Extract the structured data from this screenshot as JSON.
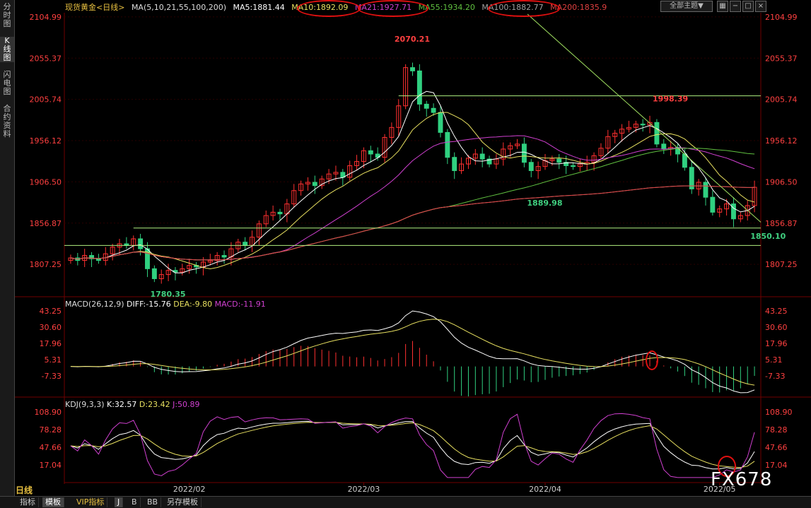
{
  "sidebar": {
    "tabs": [
      "分时图",
      "K线图",
      "闪电图",
      "合约资料"
    ],
    "active": 1
  },
  "header": {
    "title": "现货黄金<日线>",
    "ma_label": "MA(5,10,21,55,100,200)",
    "ma_values": [
      {
        "label": "MA5:1881.44",
        "color": "#ffffff"
      },
      {
        "label": "MA10:1892.09",
        "color": "#e8e060"
      },
      {
        "label": "MA21:1927.71",
        "color": "#d040d0"
      },
      {
        "label": "MA55:1934.20",
        "color": "#60c040"
      },
      {
        "label": "MA100:1882.77",
        "color": "#a0a0a0"
      },
      {
        "label": "MA200:1835.9",
        "color": "#e04040"
      }
    ],
    "theme_button": "全部主题▼"
  },
  "macd_legend": {
    "title": "MACD(26,12,9)",
    "diff": "DIFF:-15.76",
    "dea": "DEA:-9.80",
    "macd": "MACD:-11.91"
  },
  "kdj_legend": {
    "title": "KDJ(9,3,3)",
    "k": "K:32.57",
    "d": "D:23.42",
    "j": "J:50.89"
  },
  "day_label": "日线",
  "bottom_tabs": [
    "指标",
    "模板",
    "VIP指标",
    "J",
    "B",
    "BB",
    "另存模板"
  ],
  "watermark": "FX678",
  "colors": {
    "up": "#ff3030",
    "down": "#30d080",
    "grid": "#700000",
    "axis_text": "#ff4040"
  },
  "chart_data": {
    "type": "candlestick",
    "x_labels": [
      "2022/02",
      "2022/03",
      "2022/04",
      "2022/05"
    ],
    "price_axis": [
      2104.99,
      2055.37,
      2005.74,
      1956.12,
      1906.5,
      1856.87,
      1807.25
    ],
    "price_range": [
      1770,
      2110
    ],
    "annotations": [
      {
        "label": "2070.21",
        "value": 2070.21,
        "index": 46,
        "color": "#ff4040"
      },
      {
        "label": "1998.39",
        "value": 1998.39,
        "index": 83,
        "color": "#ff4040"
      },
      {
        "label": "1889.98",
        "value": 1889.98,
        "index": 65,
        "color": "#40d080"
      },
      {
        "label": "1850.10",
        "value": 1850.1,
        "index": 97,
        "color": "#40d080"
      },
      {
        "label": "1780.35",
        "value": 1780.35,
        "index": 11,
        "color": "#40d080"
      }
    ],
    "closes": [
      1815,
      1812,
      1818,
      1814,
      1812,
      1820,
      1828,
      1832,
      1830,
      1838,
      1826,
      1802,
      1790,
      1795,
      1800,
      1798,
      1802,
      1806,
      1804,
      1810,
      1812,
      1818,
      1816,
      1826,
      1834,
      1830,
      1840,
      1856,
      1866,
      1870,
      1868,
      1880,
      1896,
      1904,
      1906,
      1902,
      1910,
      1916,
      1918,
      1912,
      1926,
      1931,
      1944,
      1940,
      1936,
      1960,
      1972,
      1998,
      2044,
      2040,
      2000,
      1995,
      1990,
      1966,
      1936,
      1920,
      1928,
      1935,
      1940,
      1934,
      1928,
      1934,
      1946,
      1950,
      1952,
      1930,
      1920,
      1925,
      1932,
      1934,
      1930,
      1926,
      1925,
      1928,
      1930,
      1938,
      1947,
      1961,
      1965,
      1970,
      1972,
      1976,
      1975,
      1978,
      1952,
      1946,
      1948,
      1940,
      1924,
      1898,
      1906,
      1888,
      1870,
      1874,
      1880,
      1862,
      1866,
      1878,
      1900
    ],
    "macd_axis": [
      43.25,
      30.6,
      17.96,
      5.31,
      -7.33
    ],
    "kdj_axis": [
      108.9,
      78.28,
      47.66,
      17.04
    ]
  }
}
